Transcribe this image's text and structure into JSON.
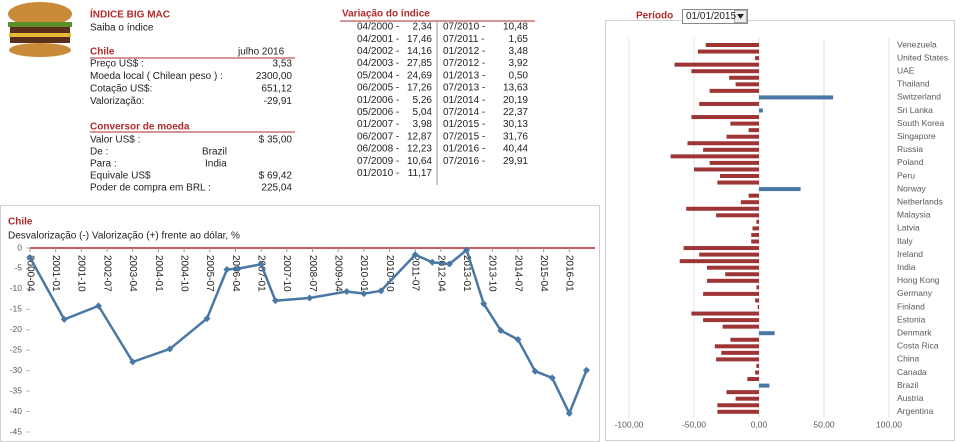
{
  "header": {
    "title": "ÍNDICE BIG MAC",
    "link": "Saiba o índice"
  },
  "country_panel": {
    "country": "Chile",
    "date": "julho 2016",
    "rows": [
      [
        "Preço US$ :",
        "3,53"
      ],
      [
        "Moeda local ( Chilean peso ) :",
        "2300,00"
      ],
      [
        "Cotação US$:",
        "651,12"
      ],
      [
        "Valorização:",
        "-29,91"
      ]
    ]
  },
  "converter": {
    "title": "Conversor de moeda",
    "rows": [
      [
        "Valor US$ :",
        "$ 35,00"
      ],
      [
        "De :",
        "Brazil"
      ],
      [
        "Para :",
        "India"
      ],
      [
        "Equivale US$",
        "$ 69,42"
      ],
      [
        "Poder de compra em BRL :",
        "225,04"
      ]
    ]
  },
  "variation": {
    "title": "Variação do índice",
    "columns": [
      [
        [
          "04/2000 -",
          "2,34"
        ],
        [
          "04/2001 -",
          "17,46"
        ],
        [
          "04/2002 -",
          "14,16"
        ],
        [
          "04/2003 -",
          "27,85"
        ],
        [
          "05/2004 -",
          "24,69"
        ],
        [
          "06/2005 -",
          "17,26"
        ],
        [
          "01/2006 -",
          "5,26"
        ],
        [
          "05/2006 -",
          "5,04"
        ],
        [
          "01/2007 -",
          "3,98"
        ],
        [
          "06/2007 -",
          "12,87"
        ],
        [
          "06/2008 -",
          "12,23"
        ],
        [
          "07/2009 -",
          "10,64"
        ],
        [
          "01/2010 -",
          "11,17"
        ]
      ],
      [
        [
          "07/2010 -",
          "10,48"
        ],
        [
          "07/2011 -",
          "1,65"
        ],
        [
          "01/2012 -",
          "3,48"
        ],
        [
          "07/2012 -",
          "3,92"
        ],
        [
          "01/2013 -",
          "0,50"
        ],
        [
          "07/2013 -",
          "13,63"
        ],
        [
          "01/2014 -",
          "20,19"
        ],
        [
          "07/2014 -",
          "22,37"
        ],
        [
          "01/2015 -",
          "30,13"
        ],
        [
          "07/2015 -",
          "31,76"
        ],
        [
          "01/2016 -",
          "40,44"
        ],
        [
          "07/2016 -",
          "29,91"
        ]
      ]
    ]
  },
  "period": {
    "label": "Período",
    "value": "01/01/2015"
  },
  "chart_data": [
    {
      "type": "line",
      "title": "Chile",
      "subtitle": "Desvalorização (-) Valorização (+) frente ao dólar, %",
      "x": [
        "2000-04",
        "2001-04",
        "2002-04",
        "2003-04",
        "2004-05",
        "2005-06",
        "2006-01",
        "2006-05",
        "2007-01",
        "2007-06",
        "2008-06",
        "2009-07",
        "2010-01",
        "2010-07",
        "2011-07",
        "2012-01",
        "2012-07",
        "2013-01",
        "2013-07",
        "2014-01",
        "2014-07",
        "2015-01",
        "2015-07",
        "2016-01",
        "2016-07"
      ],
      "values": [
        -2.34,
        -17.46,
        -14.16,
        -27.85,
        -24.69,
        -17.26,
        -5.26,
        -5.04,
        -3.98,
        -12.87,
        -12.23,
        -10.64,
        -11.17,
        -10.48,
        -1.65,
        -3.48,
        -3.92,
        -0.5,
        -13.63,
        -20.19,
        -22.37,
        -30.13,
        -31.76,
        -40.44,
        -29.91
      ],
      "color": "#4a78a6",
      "zero_line_color": "#b22b2b",
      "xlim": [
        "2000-04",
        "2016-10"
      ],
      "xticks": [
        "2000-04",
        "2001-01",
        "2001-10",
        "2002-07",
        "2003-04",
        "2004-01",
        "2004-10",
        "2005-07",
        "2006-04",
        "2007-01",
        "2007-10",
        "2008-07",
        "2009-04",
        "2010-01",
        "2010-10",
        "2011-07",
        "2012-04",
        "2013-01",
        "2013-10",
        "2014-07",
        "2015-04",
        "2016-01"
      ],
      "ylim": [
        -45,
        0
      ],
      "yticks": [
        0,
        -5,
        -10,
        -15,
        -20,
        -25,
        -30,
        -35,
        -40,
        -45
      ],
      "grid": false
    },
    {
      "type": "bar",
      "orientation": "horizontal",
      "categories": [
        "Venezuela",
        null,
        "United States",
        null,
        "UAE",
        null,
        "Thailand",
        null,
        "Switzerland",
        null,
        "Sri Lanka",
        null,
        "South Korea",
        null,
        "Singapore",
        null,
        "Russia",
        null,
        "Poland",
        null,
        "Peru",
        null,
        "Norway",
        null,
        "Netherlands",
        null,
        "Malaysia",
        null,
        "Latvia",
        null,
        "Italy",
        null,
        "Ireland",
        null,
        "India",
        null,
        "Hong Kong",
        null,
        "Germany",
        null,
        "Finland",
        null,
        "Estonia",
        null,
        "Denmark",
        null,
        "Costa Rica",
        null,
        "China",
        null,
        "Canada",
        null,
        "Brazil",
        null,
        "Austria",
        null,
        "Argentina"
      ],
      "values": [
        -41,
        -47,
        -3,
        -65,
        -52,
        -23,
        -18,
        -38,
        57,
        -46,
        3,
        -52,
        -22,
        -8,
        -25,
        -55,
        -43,
        -68,
        -38,
        -50,
        -30,
        -32,
        32,
        -8,
        -14,
        -56,
        -33,
        -2,
        -5,
        -6,
        -6,
        -58,
        -46,
        -61,
        -40,
        -26,
        -40,
        -2,
        -43,
        -3,
        -1,
        -52,
        -43,
        -28,
        12,
        -22,
        -34,
        -29,
        -33,
        -2,
        -3,
        -9,
        8,
        -25,
        -18,
        -32,
        -32
      ],
      "color": "#9e3535",
      "positive_color": "#4a78a6",
      "xlim": [
        -100,
        100
      ],
      "xticks": [
        {
          "value": -100,
          "label": "-100,00"
        },
        {
          "value": -50,
          "label": "-50,00"
        },
        {
          "value": 0,
          "label": "0,00"
        },
        {
          "value": 50,
          "label": "50,00"
        },
        {
          "value": 100,
          "label": "100,00"
        }
      ],
      "grid": true
    }
  ]
}
